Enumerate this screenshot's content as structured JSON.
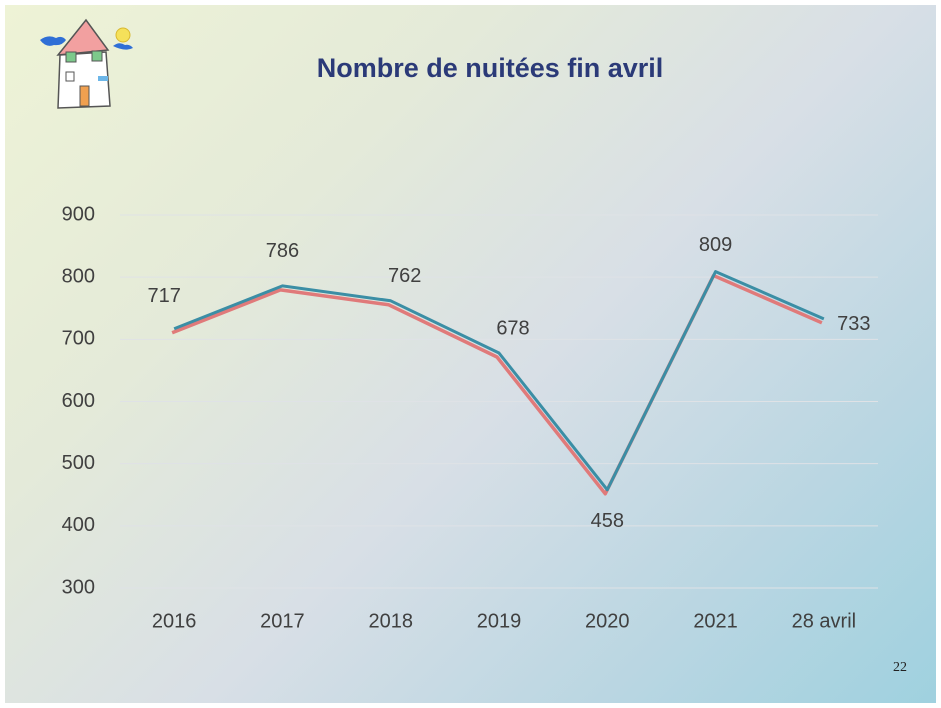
{
  "chart_data": {
    "type": "line",
    "title": "Nombre de nuitées fin avril",
    "categories": [
      "2016",
      "2017",
      "2018",
      "2019",
      "2020",
      "2021",
      "28 avril"
    ],
    "values": [
      717,
      786,
      762,
      678,
      458,
      809,
      733
    ],
    "color": "#3b8ea5",
    "shadow_color": "#e07a7a",
    "ylim": [
      300,
      900
    ],
    "yticks": [
      300,
      400,
      500,
      600,
      700,
      800,
      900
    ],
    "grid": true,
    "page_number": "22"
  }
}
